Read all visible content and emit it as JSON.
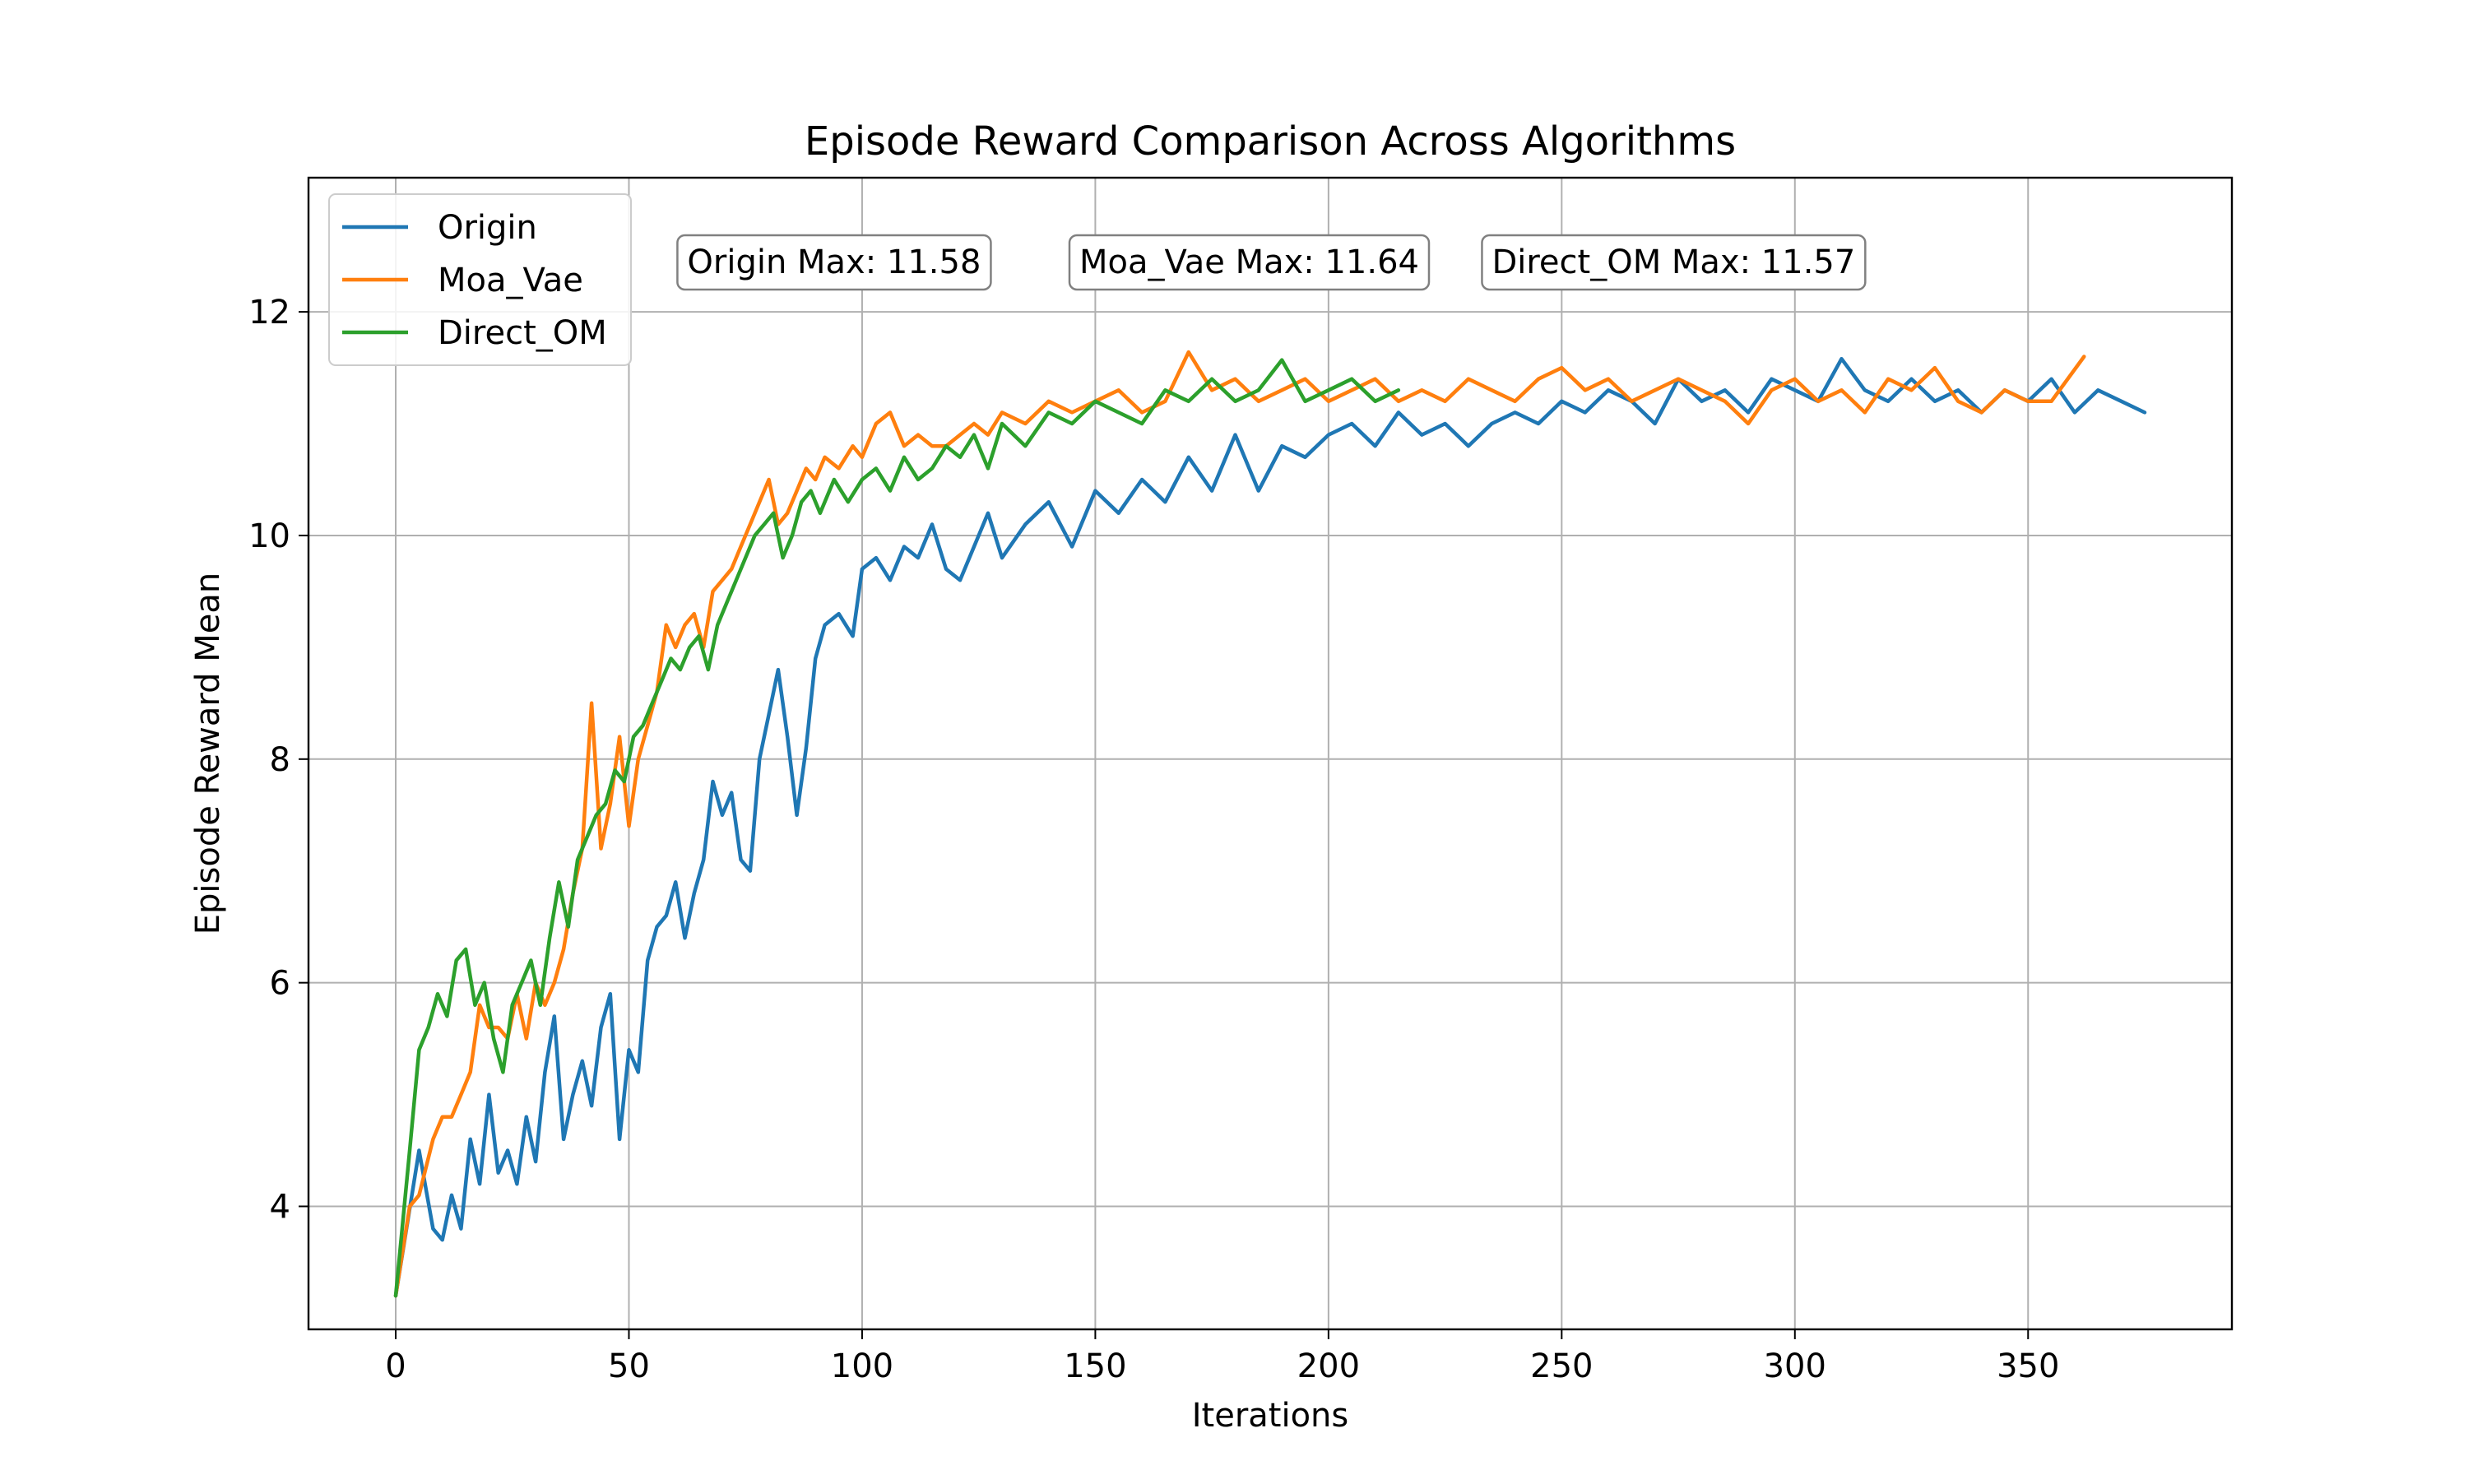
{
  "chart_data": {
    "type": "line",
    "title": "Episode Reward Comparison Across Algorithms",
    "xlabel": "Iterations",
    "ylabel": "Episode Reward Mean",
    "xlim": [
      -18.7,
      393.7
    ],
    "ylim": [
      2.9,
      13.2
    ],
    "x_ticks": [
      0,
      50,
      100,
      150,
      200,
      250,
      300,
      350
    ],
    "y_ticks": [
      4,
      6,
      8,
      10,
      12
    ],
    "grid": true,
    "legend_position": "upper-left",
    "annotations": [
      {
        "label": "Origin Max: 11.58",
        "x": 94,
        "y": 12.45
      },
      {
        "label": "Moa_Vae Max: 11.64",
        "x": 183,
        "y": 12.45
      },
      {
        "label": "Direct_OM Max: 11.57",
        "x": 274,
        "y": 12.45
      }
    ],
    "series": [
      {
        "name": "Origin",
        "color": "#1f77b4",
        "x": [
          0,
          5,
          8,
          10,
          12,
          14,
          16,
          18,
          20,
          22,
          24,
          26,
          28,
          30,
          32,
          34,
          36,
          38,
          40,
          42,
          44,
          46,
          48,
          50,
          52,
          54,
          56,
          58,
          60,
          62,
          64,
          66,
          68,
          70,
          72,
          74,
          76,
          78,
          80,
          82,
          84,
          86,
          88,
          90,
          92,
          95,
          98,
          100,
          103,
          106,
          109,
          112,
          115,
          118,
          121,
          124,
          127,
          130,
          135,
          140,
          145,
          150,
          155,
          160,
          165,
          170,
          175,
          180,
          185,
          190,
          195,
          200,
          205,
          210,
          215,
          220,
          225,
          230,
          235,
          240,
          245,
          250,
          255,
          260,
          265,
          270,
          275,
          280,
          285,
          290,
          295,
          300,
          305,
          310,
          315,
          320,
          325,
          330,
          335,
          340,
          345,
          350,
          355,
          360,
          365,
          370,
          375
        ],
        "y": [
          3.2,
          4.5,
          3.8,
          3.7,
          4.1,
          3.8,
          4.6,
          4.2,
          5.0,
          4.3,
          4.5,
          4.2,
          4.8,
          4.4,
          5.2,
          5.7,
          4.6,
          5.0,
          5.3,
          4.9,
          5.6,
          5.9,
          4.6,
          5.4,
          5.2,
          6.2,
          6.5,
          6.6,
          6.9,
          6.4,
          6.8,
          7.1,
          7.8,
          7.5,
          7.7,
          7.1,
          7.0,
          8.0,
          8.4,
          8.8,
          8.2,
          7.5,
          8.1,
          8.9,
          9.2,
          9.3,
          9.1,
          9.7,
          9.8,
          9.6,
          9.9,
          9.8,
          10.1,
          9.7,
          9.6,
          9.9,
          10.2,
          9.8,
          10.1,
          10.3,
          9.9,
          10.4,
          10.2,
          10.5,
          10.3,
          10.7,
          10.4,
          10.9,
          10.4,
          10.8,
          10.7,
          10.9,
          11.0,
          10.8,
          11.1,
          10.9,
          11.0,
          10.8,
          11.0,
          11.1,
          11.0,
          11.2,
          11.1,
          11.3,
          11.2,
          11.0,
          11.4,
          11.2,
          11.3,
          11.1,
          11.4,
          11.3,
          11.2,
          11.58,
          11.3,
          11.2,
          11.4,
          11.2,
          11.3,
          11.1,
          11.3,
          11.2,
          11.4,
          11.1,
          11.3,
          11.2,
          11.1
        ]
      },
      {
        "name": "Moa_Vae",
        "color": "#ff7f0e",
        "x": [
          0,
          3,
          5,
          8,
          10,
          12,
          14,
          16,
          18,
          20,
          22,
          24,
          26,
          28,
          30,
          32,
          34,
          36,
          38,
          40,
          42,
          44,
          46,
          48,
          50,
          52,
          54,
          56,
          58,
          60,
          62,
          64,
          66,
          68,
          70,
          72,
          74,
          76,
          78,
          80,
          82,
          84,
          86,
          88,
          90,
          92,
          95,
          98,
          100,
          103,
          106,
          109,
          112,
          115,
          118,
          121,
          124,
          127,
          130,
          135,
          140,
          145,
          150,
          155,
          160,
          165,
          170,
          175,
          180,
          185,
          190,
          195,
          200,
          205,
          210,
          215,
          220,
          225,
          230,
          235,
          240,
          245,
          250,
          255,
          260,
          265,
          270,
          275,
          280,
          285,
          290,
          295,
          300,
          305,
          310,
          315,
          320,
          325,
          330,
          335,
          340,
          345,
          350,
          355,
          362
        ],
        "y": [
          3.2,
          4.0,
          4.1,
          4.6,
          4.8,
          4.8,
          5.0,
          5.2,
          5.8,
          5.6,
          5.6,
          5.5,
          5.9,
          5.5,
          6.0,
          5.8,
          6.0,
          6.3,
          6.8,
          7.2,
          8.5,
          7.2,
          7.6,
          8.2,
          7.4,
          8.0,
          8.3,
          8.6,
          9.2,
          9.0,
          9.2,
          9.3,
          9.0,
          9.5,
          9.6,
          9.7,
          9.9,
          10.1,
          10.3,
          10.5,
          10.1,
          10.2,
          10.4,
          10.6,
          10.5,
          10.7,
          10.6,
          10.8,
          10.7,
          11.0,
          11.1,
          10.8,
          10.9,
          10.8,
          10.8,
          10.9,
          11.0,
          10.9,
          11.1,
          11.0,
          11.2,
          11.1,
          11.2,
          11.3,
          11.1,
          11.2,
          11.64,
          11.3,
          11.4,
          11.2,
          11.3,
          11.4,
          11.2,
          11.3,
          11.4,
          11.2,
          11.3,
          11.2,
          11.4,
          11.3,
          11.2,
          11.4,
          11.5,
          11.3,
          11.4,
          11.2,
          11.3,
          11.4,
          11.3,
          11.2,
          11.0,
          11.3,
          11.4,
          11.2,
          11.3,
          11.1,
          11.4,
          11.3,
          11.5,
          11.2,
          11.1,
          11.3,
          11.2,
          11.2,
          11.6
        ]
      },
      {
        "name": "Direct_OM",
        "color": "#2ca02c",
        "x": [
          0,
          3,
          5,
          7,
          9,
          11,
          13,
          15,
          17,
          19,
          21,
          23,
          25,
          27,
          29,
          31,
          33,
          35,
          37,
          39,
          41,
          43,
          45,
          47,
          49,
          51,
          53,
          55,
          57,
          59,
          61,
          63,
          65,
          67,
          69,
          71,
          73,
          75,
          77,
          79,
          81,
          83,
          85,
          87,
          89,
          91,
          94,
          97,
          100,
          103,
          106,
          109,
          112,
          115,
          118,
          121,
          124,
          127,
          130,
          135,
          140,
          145,
          150,
          155,
          160,
          165,
          170,
          175,
          180,
          185,
          190,
          195,
          200,
          205,
          210,
          215
        ],
        "y": [
          3.2,
          4.5,
          5.4,
          5.6,
          5.9,
          5.7,
          6.2,
          6.3,
          5.8,
          6.0,
          5.5,
          5.2,
          5.8,
          6.0,
          6.2,
          5.8,
          6.4,
          6.9,
          6.5,
          7.1,
          7.3,
          7.5,
          7.6,
          7.9,
          7.8,
          8.2,
          8.3,
          8.5,
          8.7,
          8.9,
          8.8,
          9.0,
          9.1,
          8.8,
          9.2,
          9.4,
          9.6,
          9.8,
          10.0,
          10.1,
          10.2,
          9.8,
          10.0,
          10.3,
          10.4,
          10.2,
          10.5,
          10.3,
          10.5,
          10.6,
          10.4,
          10.7,
          10.5,
          10.6,
          10.8,
          10.7,
          10.9,
          10.6,
          11.0,
          10.8,
          11.1,
          11.0,
          11.2,
          11.1,
          11.0,
          11.3,
          11.2,
          11.4,
          11.2,
          11.3,
          11.57,
          11.2,
          11.3,
          11.4,
          11.2,
          11.3
        ]
      }
    ]
  }
}
